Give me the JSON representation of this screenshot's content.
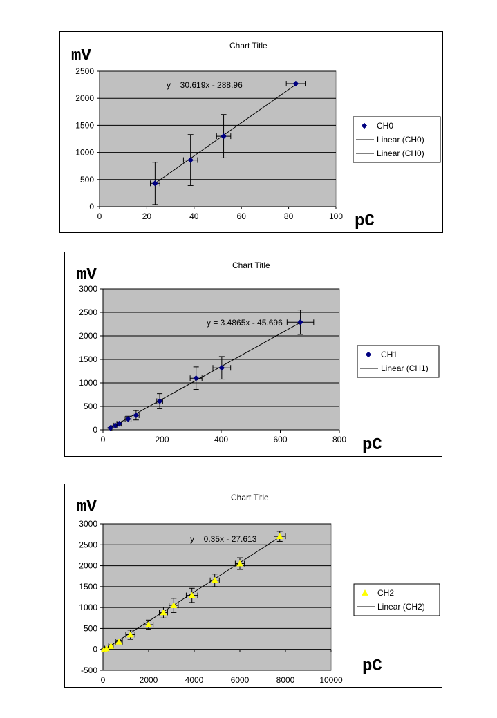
{
  "chart_data": [
    {
      "type": "scatter",
      "title": "Chart Title",
      "ylabel": "mV",
      "xlabel": "pC",
      "xlim": [
        0,
        100
      ],
      "ylim": [
        0,
        2500
      ],
      "xticks": [
        "0",
        "20",
        "40",
        "60",
        "80",
        "100"
      ],
      "yticks": [
        "0",
        "500",
        "1000",
        "1500",
        "2000",
        "2500"
      ],
      "grid": true,
      "legend_position": "right",
      "marker_color": "#000080",
      "plot_bg": "#c0c0c0",
      "equation": "y = 30.619x - 288.96",
      "series": [
        {
          "name": "CH0",
          "marker": "diamond",
          "points": [
            {
              "x": 23.5,
              "y": 430,
              "xerr": 2,
              "yerr": 390
            },
            {
              "x": 38.5,
              "y": 860,
              "xerr": 3,
              "yerr": 470
            },
            {
              "x": 52.5,
              "y": 1300,
              "xerr": 3,
              "yerr": 400
            },
            {
              "x": 83,
              "y": 2270,
              "xerr": 4,
              "yerr": 0
            }
          ]
        }
      ],
      "trendline": {
        "slope": 30.619,
        "intercept": -288.96,
        "x_range": [
          23.5,
          83
        ]
      },
      "legend": [
        "CH0",
        "Linear (CH0)",
        "Linear (CH0)"
      ]
    },
    {
      "type": "scatter",
      "title": "Chart Title",
      "ylabel": "mV",
      "xlabel": "pC",
      "xlim": [
        0,
        800
      ],
      "ylim": [
        0,
        3000
      ],
      "xticks": [
        "0",
        "200",
        "400",
        "600",
        "800"
      ],
      "yticks": [
        "0",
        "500",
        "1000",
        "1500",
        "2000",
        "2500",
        "3000"
      ],
      "grid": true,
      "legend_position": "right",
      "marker_color": "#000080",
      "plot_bg": "#c0c0c0",
      "equation": "y = 3.4865x - 45.696",
      "series": [
        {
          "name": "CH1",
          "marker": "diamond",
          "points": [
            {
              "x": 25,
              "y": 40,
              "xerr": 5,
              "yerr": 10
            },
            {
              "x": 42,
              "y": 90,
              "xerr": 5,
              "yerr": 15
            },
            {
              "x": 55,
              "y": 130,
              "xerr": 8,
              "yerr": 30
            },
            {
              "x": 85,
              "y": 230,
              "xerr": 10,
              "yerr": 60
            },
            {
              "x": 112,
              "y": 310,
              "xerr": 10,
              "yerr": 100
            },
            {
              "x": 192,
              "y": 610,
              "xerr": 10,
              "yerr": 160
            },
            {
              "x": 315,
              "y": 1100,
              "xerr": 20,
              "yerr": 240
            },
            {
              "x": 402,
              "y": 1320,
              "xerr": 30,
              "yerr": 240
            },
            {
              "x": 668,
              "y": 2290,
              "xerr": 45,
              "yerr": 260
            }
          ]
        }
      ],
      "trendline": {
        "slope": 3.4865,
        "intercept": -45.696,
        "x_range": [
          25,
          668
        ]
      },
      "legend": [
        "CH1",
        "Linear (CH1)"
      ]
    },
    {
      "type": "scatter",
      "title": "Chart Title",
      "ylabel": "mV",
      "xlabel": "pC",
      "xlim": [
        0,
        10000
      ],
      "ylim": [
        -500,
        3000
      ],
      "xticks": [
        "0",
        "2000",
        "4000",
        "6000",
        "8000",
        "10000"
      ],
      "yticks": [
        "-500",
        "0",
        "500",
        "1000",
        "1500",
        "2000",
        "2500",
        "3000"
      ],
      "grid": true,
      "legend_position": "right",
      "marker_color": "#ffff00",
      "plot_bg": "#c0c0c0",
      "equation": "y = 0.35x - 27.613",
      "series": [
        {
          "name": "CH2",
          "marker": "triangle",
          "points": [
            {
              "x": 50,
              "y": 0,
              "xerr": 50,
              "yerr": 20
            },
            {
              "x": 150,
              "y": 20,
              "xerr": 80,
              "yerr": 20
            },
            {
              "x": 350,
              "y": 80,
              "xerr": 100,
              "yerr": 30
            },
            {
              "x": 700,
              "y": 180,
              "xerr": 150,
              "yerr": 40
            },
            {
              "x": 1200,
              "y": 350,
              "xerr": 200,
              "yerr": 110
            },
            {
              "x": 2000,
              "y": 590,
              "xerr": 200,
              "yerr": 110
            },
            {
              "x": 2650,
              "y": 880,
              "xerr": 180,
              "yerr": 130
            },
            {
              "x": 3100,
              "y": 1050,
              "xerr": 200,
              "yerr": 170
            },
            {
              "x": 3900,
              "y": 1290,
              "xerr": 250,
              "yerr": 170
            },
            {
              "x": 4900,
              "y": 1650,
              "xerr": 200,
              "yerr": 150
            },
            {
              "x": 6000,
              "y": 2050,
              "xerr": 200,
              "yerr": 140
            },
            {
              "x": 7750,
              "y": 2700,
              "xerr": 250,
              "yerr": 120
            }
          ]
        }
      ],
      "trendline": {
        "slope": 0.35,
        "intercept": -27.613,
        "x_range": [
          50,
          7750
        ]
      },
      "legend": [
        "CH2",
        "Linear (CH2)"
      ]
    }
  ]
}
